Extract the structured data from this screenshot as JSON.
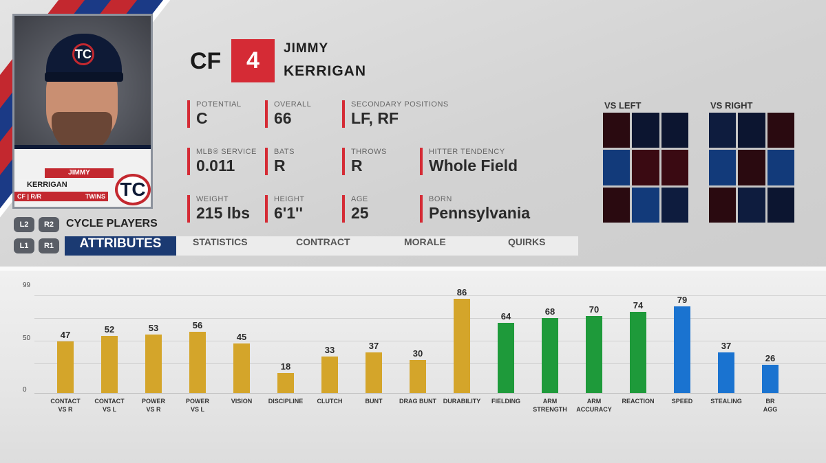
{
  "player": {
    "position": "CF",
    "number": "4",
    "first_name": "JIMMY",
    "last_name": "KERRIGAN",
    "card": {
      "first_name": "JIMMY",
      "last_name": "KERRIGAN",
      "pos_info": "CF | R/R",
      "team": "TWINS",
      "cap_logo": "TC"
    }
  },
  "info": [
    {
      "label": "POTENTIAL",
      "value": "C"
    },
    {
      "label": "OVERALL",
      "value": "66"
    },
    {
      "label": "SECONDARY POSITIONS",
      "value": "LF, RF"
    },
    {
      "label": "MLB® SERVICE",
      "value": "0.011"
    },
    {
      "label": "BATS",
      "value": "R"
    },
    {
      "label": "THROWS",
      "value": "R"
    },
    {
      "label": "HITTER TENDENCY",
      "value": "Whole Field"
    },
    {
      "label": "WEIGHT",
      "value": "215 lbs"
    },
    {
      "label": "HEIGHT",
      "value": "6'1''"
    },
    {
      "label": "AGE",
      "value": "25"
    },
    {
      "label": "BORN",
      "value": "Pennsylvania"
    }
  ],
  "splits": {
    "left_title": "VS LEFT",
    "right_title": "VS RIGHT",
    "left_zones": [
      "#2a0a10",
      "#0c1530",
      "#0c1530",
      "#123a7a",
      "#3a0a12",
      "#3a0a12",
      "#2a0a10",
      "#123a7a",
      "#0e1c3e"
    ],
    "right_zones": [
      "#0e1c3e",
      "#0c1530",
      "#2a0a10",
      "#123a7a",
      "#2a0a10",
      "#123a7a",
      "#2a0a10",
      "#0e1c3e",
      "#0c1530"
    ]
  },
  "controls": {
    "l2": "L2",
    "r2": "R2",
    "l1": "L1",
    "r1": "R1",
    "cycle_label": "CYCLE PLAYERS"
  },
  "tabs": [
    {
      "label": "ATTRIBUTES",
      "active": true
    },
    {
      "label": "STATISTICS",
      "active": false
    },
    {
      "label": "CONTRACT",
      "active": false
    },
    {
      "label": "MORALE",
      "active": false
    },
    {
      "label": "QUIRKS",
      "active": false
    }
  ],
  "chart_data": {
    "type": "bar",
    "ylim": [
      0,
      99
    ],
    "yticks": [
      "99",
      "50",
      "0"
    ],
    "colors": {
      "hitting": "#d4a52a",
      "fielding": "#1e9a3a",
      "running": "#1a73d0"
    },
    "categories": [
      "CONTACT\nVS R",
      "CONTACT\nVS L",
      "POWER\nVS R",
      "POWER\nVS L",
      "VISION",
      "DISCIPLINE",
      "CLUTCH",
      "BUNT",
      "DRAG BUNT",
      "DURABILITY",
      "FIELDING",
      "ARM\nSTRENGTH",
      "ARM\nACCURACY",
      "REACTION",
      "SPEED",
      "STEALING",
      "BR\nAGG"
    ],
    "values": [
      47,
      52,
      53,
      56,
      45,
      18,
      33,
      37,
      30,
      86,
      64,
      68,
      70,
      74,
      79,
      37,
      26
    ],
    "groups": [
      "hitting",
      "hitting",
      "hitting",
      "hitting",
      "hitting",
      "hitting",
      "hitting",
      "hitting",
      "hitting",
      "hitting",
      "fielding",
      "fielding",
      "fielding",
      "fielding",
      "running",
      "running",
      "running"
    ]
  }
}
